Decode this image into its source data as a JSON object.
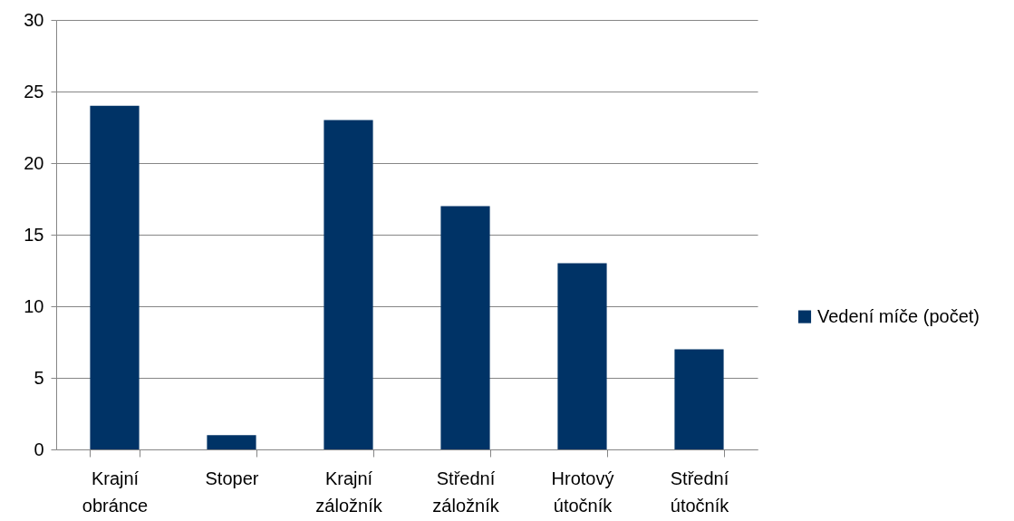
{
  "chart_data": {
    "type": "bar",
    "categories": [
      "Krajní obránce",
      "Stoper",
      "Krajní záložník",
      "Střední záložník",
      "Hrotový útočník",
      "Střední útočník"
    ],
    "series": [
      {
        "name": "Vedení míče (počet)",
        "color": "#003366",
        "values": [
          24,
          1,
          23,
          17,
          13,
          7
        ]
      }
    ],
    "ylim": [
      0,
      30
    ],
    "yticks": [
      0,
      5,
      10,
      15,
      20,
      25,
      30
    ],
    "grid": "y",
    "legend": "right"
  }
}
